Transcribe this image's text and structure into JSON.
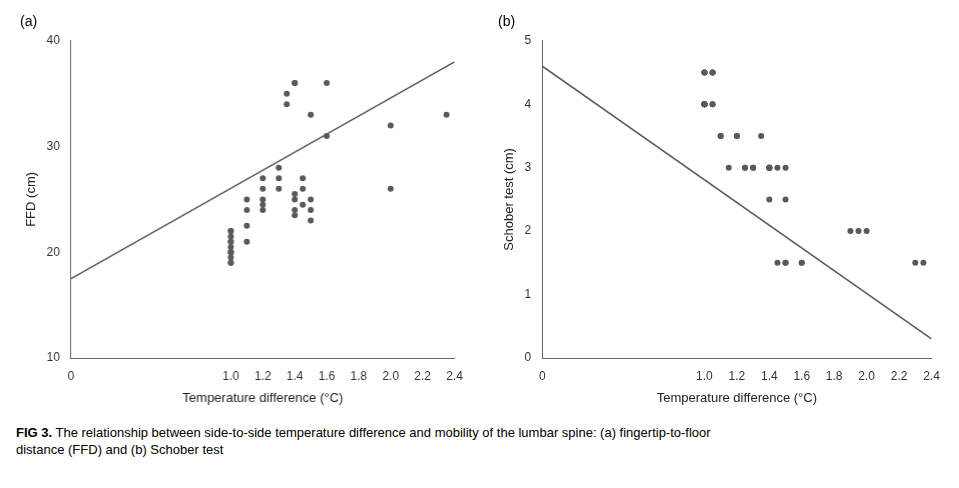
{
  "chart_data": [
    {
      "type": "scatter",
      "title": "(a)",
      "xlabel": "Temperature difference (°C)",
      "ylabel": "FFD (cm)",
      "xlim": [
        0,
        2.4
      ],
      "ylim": [
        10,
        40
      ],
      "xticks": [
        0,
        {
          "value": 1.0,
          "label": "1.0"
        },
        1.2,
        1.4,
        1.6,
        1.8,
        {
          "value": 2.0,
          "label": "2.0"
        },
        2.2,
        2.4
      ],
      "yticks": [
        10,
        20,
        30,
        40
      ],
      "grid": false,
      "series": [
        {
          "type": "scatter",
          "marker": "circle",
          "color": "#595959",
          "x": [
            1.0,
            1.0,
            1.0,
            1.0,
            1.0,
            1.0,
            1.0,
            1.0,
            1.0,
            1.0,
            1.0,
            1.0,
            1.1,
            1.1,
            1.1,
            1.1,
            1.2,
            1.2,
            1.2,
            1.2,
            1.2,
            1.3,
            1.3,
            1.3,
            1.35,
            1.35,
            1.4,
            1.4,
            1.4,
            1.4,
            1.4,
            1.4,
            1.45,
            1.45,
            1.45,
            1.5,
            1.5,
            1.5,
            1.5,
            1.6,
            1.6,
            2.0,
            2.0,
            2.35
          ],
          "values": [
            19.0,
            19.5,
            20.0,
            20.0,
            20.5,
            21.0,
            21.5,
            22.0,
            22.0,
            19.0,
            20.0,
            21.0,
            21.0,
            22.5,
            24.0,
            25.0,
            24.0,
            24.5,
            25.0,
            26.0,
            27.0,
            26.0,
            27.0,
            28.0,
            34.0,
            35.0,
            23.5,
            24.0,
            25.0,
            25.5,
            36.0,
            36.0,
            24.5,
            26.0,
            27.0,
            23.0,
            24.0,
            25.0,
            33.0,
            31.0,
            36.0,
            26.0,
            32.0,
            33.0
          ]
        },
        {
          "type": "line",
          "line_style": "solid",
          "color": "#595959",
          "x": [
            0.0,
            2.4
          ],
          "values": [
            17.5,
            38.0
          ]
        }
      ]
    },
    {
      "type": "scatter",
      "title": "(b)",
      "xlabel": "Temperature difference (°C)",
      "ylabel": "Schober test (cm)",
      "xlim": [
        0,
        2.4
      ],
      "ylim": [
        0,
        5
      ],
      "xticks": [
        0,
        {
          "value": 1.0,
          "label": "1.0"
        },
        1.2,
        1.4,
        1.6,
        1.8,
        {
          "value": 2.0,
          "label": "2.0"
        },
        2.2,
        2.4
      ],
      "yticks": [
        0,
        1,
        2,
        3,
        4,
        5
      ],
      "grid": false,
      "series": [
        {
          "type": "scatter",
          "marker": "circle",
          "color": "#595959",
          "x": [
            1.0,
            1.0,
            1.0,
            1.05,
            1.05,
            1.05,
            1.0,
            1.0,
            1.0,
            1.0,
            1.0,
            1.0,
            1.0,
            1.05,
            1.05,
            1.1,
            1.1,
            1.15,
            1.2,
            1.2,
            1.25,
            1.25,
            1.3,
            1.3,
            1.35,
            1.4,
            1.4,
            1.4,
            1.4,
            1.4,
            1.4,
            1.45,
            1.45,
            1.5,
            1.5,
            1.5,
            1.5,
            1.6,
            1.6,
            1.9,
            1.95,
            2.0,
            2.3,
            2.35
          ],
          "values": [
            4.5,
            4.5,
            4.5,
            4.5,
            4.5,
            4.5,
            4.0,
            4.0,
            4.0,
            4.0,
            4.0,
            4.0,
            4.0,
            4.0,
            4.0,
            3.5,
            3.5,
            3.0,
            3.5,
            3.5,
            3.0,
            3.0,
            3.0,
            3.0,
            3.5,
            3.0,
            3.0,
            3.0,
            3.0,
            3.0,
            2.5,
            3.0,
            1.5,
            1.5,
            1.5,
            3.0,
            2.5,
            1.5,
            1.5,
            2.0,
            2.0,
            2.0,
            1.5,
            1.5
          ]
        },
        {
          "type": "line",
          "line_style": "solid",
          "color": "#595959",
          "x": [
            0.0,
            2.4
          ],
          "values": [
            4.6,
            0.3
          ]
        }
      ]
    }
  ],
  "caption": "FIG 3. The relationship between side-to-side temperature difference and mobility of the lumbar spine: (a) fingertip-to-floor\ndistance (FFD) and (b) Schober test"
}
